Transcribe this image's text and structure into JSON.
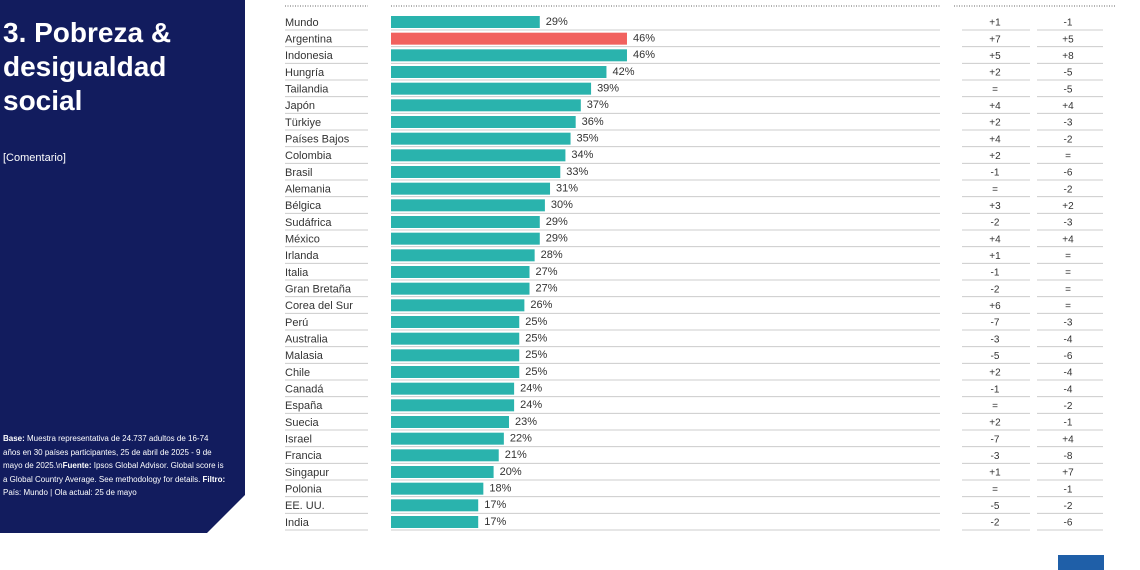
{
  "slide": {
    "title": "3. Pobreza & desigualdad social",
    "comment": "[Comentario]",
    "footnote": [
      {
        "text": "Base:",
        "bold": true
      },
      {
        "text": " Muestra representativa de 24.737 adultos de 16-74 años en 30 países participantes, 25 de abril de 2025 - 9 de mayo de 2025.\\n",
        "bold": false
      },
      {
        "text": "Fuente:",
        "bold": true
      },
      {
        "text": " Ipsos Global Advisor. Global score is a Global Country Average. See methodology for details. ",
        "bold": false
      },
      {
        "text": "Filtro:",
        "bold": true
      },
      {
        "text": " País: Mundo | Ola actual: 25 de mayo",
        "bold": false
      }
    ]
  },
  "chart_data": {
    "type": "hbar",
    "categories": [
      "Mundo",
      "Argentina",
      "Indonesia",
      "Hungría",
      "Tailandia",
      "Japón",
      "Türkiye",
      "Países Bajos",
      "Colombia",
      "Brasil",
      "Alemania",
      "Bélgica",
      "Sudáfrica",
      "México",
      "Irlanda",
      "Italia",
      "Gran Bretaña",
      "Corea del Sur",
      "Perú",
      "Australia",
      "Malasia",
      "Chile",
      "Canadá",
      "España",
      "Suecia",
      "Israel",
      "Francia",
      "Singapur",
      "Polonia",
      "EE. UU.",
      "India"
    ],
    "values": [
      29,
      46,
      46,
      42,
      39,
      37,
      36,
      35,
      34,
      33,
      31,
      30,
      29,
      29,
      28,
      27,
      27,
      26,
      25,
      25,
      25,
      25,
      24,
      24,
      23,
      22,
      21,
      20,
      18,
      17,
      17
    ],
    "value_labels": [
      "29%",
      "46%",
      "46%",
      "42%",
      "39%",
      "37%",
      "36%",
      "35%",
      "34%",
      "33%",
      "31%",
      "30%",
      "29%",
      "29%",
      "28%",
      "27%",
      "27%",
      "26%",
      "25%",
      "25%",
      "25%",
      "25%",
      "24%",
      "24%",
      "23%",
      "22%",
      "21%",
      "20%",
      "18%",
      "17%",
      "17%"
    ],
    "colors": [
      "#2ab3ad",
      "#f1615e",
      "#2ab3ad",
      "#2ab3ad",
      "#2ab3ad",
      "#2ab3ad",
      "#2ab3ad",
      "#2ab3ad",
      "#2ab3ad",
      "#2ab3ad",
      "#2ab3ad",
      "#2ab3ad",
      "#2ab3ad",
      "#2ab3ad",
      "#2ab3ad",
      "#2ab3ad",
      "#2ab3ad",
      "#2ab3ad",
      "#2ab3ad",
      "#2ab3ad",
      "#2ab3ad",
      "#2ab3ad",
      "#2ab3ad",
      "#2ab3ad",
      "#2ab3ad",
      "#2ab3ad",
      "#2ab3ad",
      "#2ab3ad",
      "#2ab3ad",
      "#2ab3ad",
      "#2ab3ad"
    ],
    "xlim": [
      0,
      100
    ],
    "change_columns": [
      [
        "+1",
        "+7",
        "+5",
        "+2",
        "=",
        "+4",
        "+2",
        "+4",
        "+2",
        "-1",
        "=",
        "+3",
        "-2",
        "+4",
        "+1",
        "-1",
        "-2",
        "+6",
        "-7",
        "-3",
        "-5",
        "+2",
        "-1",
        "=",
        "+2",
        "-7",
        "-3",
        "+1",
        "=",
        "-5",
        "-2"
      ],
      [
        "-1",
        "+5",
        "+8",
        "-5",
        "-5",
        "+4",
        "-3",
        "-2",
        "=",
        "-6",
        "-2",
        "+2",
        "-3",
        "+4",
        "=",
        "=",
        "=",
        "=",
        "-3",
        "-4",
        "-6",
        "-4",
        "-4",
        "-2",
        "-1",
        "+4",
        "-8",
        "+7",
        "-1",
        "-2",
        "-6"
      ]
    ]
  }
}
